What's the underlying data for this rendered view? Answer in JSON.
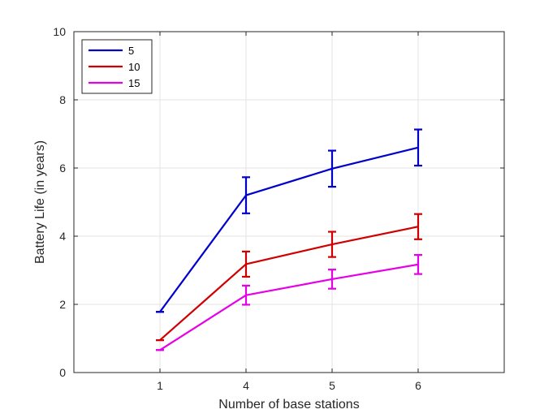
{
  "chart_data": {
    "type": "line",
    "title": "",
    "xlabel": "Number of base stations",
    "ylabel": "Battery Life (in years)",
    "categories": [
      "1",
      "4",
      "5",
      "6"
    ],
    "ylim": [
      0,
      10
    ],
    "yticks": [
      "0",
      "2",
      "4",
      "6",
      "8",
      "10"
    ],
    "grid": true,
    "legend_position": "top-left",
    "series": [
      {
        "name": "5",
        "color": "#0000cc",
        "values": [
          1.78,
          5.2,
          5.98,
          6.6
        ],
        "error_low": [
          1.78,
          4.67,
          5.45,
          6.07
        ],
        "error_high": [
          1.78,
          5.73,
          6.51,
          7.13
        ]
      },
      {
        "name": "10",
        "color": "#d00000",
        "values": [
          0.95,
          3.18,
          3.76,
          4.28
        ],
        "error_low": [
          0.95,
          2.81,
          3.39,
          3.91
        ],
        "error_high": [
          0.95,
          3.55,
          4.13,
          4.65
        ]
      },
      {
        "name": "15",
        "color": "#e600e6",
        "values": [
          0.66,
          2.27,
          2.74,
          3.17
        ],
        "error_low": [
          0.66,
          1.99,
          2.46,
          2.89
        ],
        "error_high": [
          0.66,
          2.55,
          3.02,
          3.45
        ]
      }
    ]
  }
}
